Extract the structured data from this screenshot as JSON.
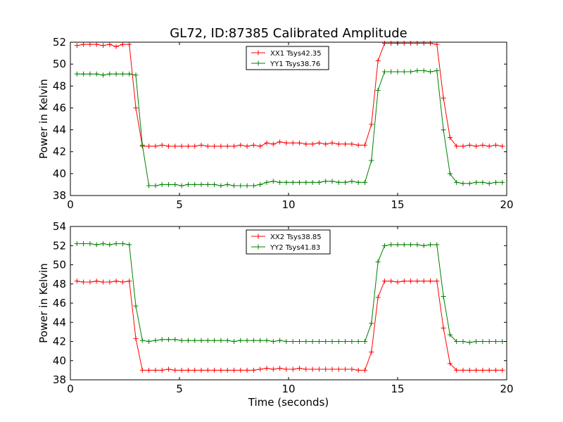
{
  "figure_title": "GL72, ID:87385 Calibrated Amplitude",
  "chart_data": [
    {
      "type": "line",
      "title": "",
      "xlabel": "",
      "ylabel": "Power in Kelvin",
      "xlim": [
        0,
        20
      ],
      "ylim": [
        38,
        52
      ],
      "xticks": [
        "0",
        "5",
        "10",
        "15",
        "20"
      ],
      "yticks": [
        "38",
        "40",
        "42",
        "44",
        "46",
        "48",
        "50",
        "52"
      ],
      "legend_position": "top-center",
      "x": [
        0.3,
        0.6,
        0.9,
        1.2,
        1.5,
        1.8,
        2.1,
        2.4,
        2.7,
        3.0,
        3.3,
        3.6,
        3.9,
        4.2,
        4.5,
        4.8,
        5.1,
        5.4,
        5.7,
        6.0,
        6.3,
        6.6,
        6.9,
        7.2,
        7.5,
        7.8,
        8.1,
        8.4,
        8.7,
        9.0,
        9.3,
        9.6,
        9.9,
        10.2,
        10.5,
        10.8,
        11.1,
        11.4,
        11.7,
        12.0,
        12.3,
        12.6,
        12.9,
        13.2,
        13.5,
        13.8,
        14.1,
        14.4,
        14.7,
        15.0,
        15.3,
        15.6,
        15.9,
        16.2,
        16.5,
        16.8,
        17.1,
        17.4,
        17.7,
        18.0,
        18.3,
        18.6,
        18.9,
        19.2,
        19.5,
        19.8
      ],
      "series": [
        {
          "name": "XX1 Tsys42.35",
          "color": "#ff0000",
          "values": [
            51.7,
            51.8,
            51.8,
            51.8,
            51.7,
            51.8,
            51.6,
            51.8,
            51.8,
            46.0,
            42.5,
            42.5,
            42.5,
            42.6,
            42.5,
            42.5,
            42.5,
            42.5,
            42.5,
            42.6,
            42.5,
            42.5,
            42.5,
            42.5,
            42.5,
            42.6,
            42.5,
            42.6,
            42.5,
            42.8,
            42.7,
            42.9,
            42.8,
            42.8,
            42.8,
            42.7,
            42.7,
            42.8,
            42.7,
            42.8,
            42.7,
            42.7,
            42.7,
            42.6,
            42.6,
            44.5,
            50.3,
            51.9,
            51.9,
            51.9,
            51.9,
            51.9,
            51.9,
            51.9,
            51.9,
            51.8,
            46.9,
            43.3,
            42.5,
            42.5,
            42.6,
            42.5,
            42.6,
            42.5,
            42.6,
            42.5
          ]
        },
        {
          "name": "YY1 Tsys38.76",
          "color": "#008000",
          "values": [
            49.1,
            49.1,
            49.1,
            49.1,
            49.0,
            49.1,
            49.1,
            49.1,
            49.1,
            49.0,
            42.6,
            38.9,
            38.9,
            39.0,
            39.0,
            39.0,
            38.9,
            39.0,
            39.0,
            39.0,
            39.0,
            39.0,
            38.9,
            39.0,
            38.9,
            38.9,
            38.9,
            38.9,
            39.0,
            39.2,
            39.3,
            39.2,
            39.2,
            39.2,
            39.2,
            39.2,
            39.2,
            39.2,
            39.3,
            39.3,
            39.2,
            39.2,
            39.3,
            39.2,
            39.2,
            41.2,
            47.6,
            49.3,
            49.3,
            49.3,
            49.3,
            49.3,
            49.4,
            49.4,
            49.3,
            49.4,
            44.0,
            40.0,
            39.2,
            39.1,
            39.1,
            39.2,
            39.2,
            39.1,
            39.2,
            39.2
          ]
        }
      ]
    },
    {
      "type": "line",
      "title": "",
      "xlabel": "Time (seconds)",
      "ylabel": "Power in Kelvin",
      "xlim": [
        0,
        20
      ],
      "ylim": [
        38,
        54
      ],
      "xticks": [
        "0",
        "5",
        "10",
        "15",
        "20"
      ],
      "yticks": [
        "38",
        "40",
        "42",
        "44",
        "46",
        "48",
        "50",
        "52",
        "54"
      ],
      "legend_position": "top-center",
      "x": [
        0.3,
        0.6,
        0.9,
        1.2,
        1.5,
        1.8,
        2.1,
        2.4,
        2.7,
        3.0,
        3.3,
        3.6,
        3.9,
        4.2,
        4.5,
        4.8,
        5.1,
        5.4,
        5.7,
        6.0,
        6.3,
        6.6,
        6.9,
        7.2,
        7.5,
        7.8,
        8.1,
        8.4,
        8.7,
        9.0,
        9.3,
        9.6,
        9.9,
        10.2,
        10.5,
        10.8,
        11.1,
        11.4,
        11.7,
        12.0,
        12.3,
        12.6,
        12.9,
        13.2,
        13.5,
        13.8,
        14.1,
        14.4,
        14.7,
        15.0,
        15.3,
        15.6,
        15.9,
        16.2,
        16.5,
        16.8,
        17.1,
        17.4,
        17.7,
        18.0,
        18.3,
        18.6,
        18.9,
        19.2,
        19.5,
        19.8
      ],
      "series": [
        {
          "name": "XX2 Tsys38.85",
          "color": "#ff0000",
          "values": [
            48.3,
            48.2,
            48.2,
            48.3,
            48.2,
            48.2,
            48.3,
            48.2,
            48.3,
            42.3,
            39.0,
            39.0,
            39.0,
            39.0,
            39.1,
            39.0,
            39.0,
            39.0,
            39.0,
            39.0,
            39.0,
            39.0,
            39.0,
            39.0,
            39.0,
            39.0,
            39.0,
            39.0,
            39.1,
            39.2,
            39.1,
            39.2,
            39.1,
            39.1,
            39.2,
            39.1,
            39.1,
            39.1,
            39.1,
            39.1,
            39.1,
            39.1,
            39.1,
            39.0,
            39.0,
            40.9,
            46.6,
            48.3,
            48.3,
            48.2,
            48.3,
            48.3,
            48.3,
            48.3,
            48.3,
            48.3,
            43.4,
            39.7,
            39.0,
            39.0,
            39.0,
            39.0,
            39.0,
            39.0,
            39.0,
            39.0
          ]
        },
        {
          "name": "YY2 Tsys41.83",
          "color": "#008000",
          "values": [
            52.2,
            52.2,
            52.2,
            52.1,
            52.2,
            52.1,
            52.2,
            52.2,
            52.1,
            45.7,
            42.1,
            42.0,
            42.1,
            42.2,
            42.2,
            42.2,
            42.1,
            42.1,
            42.1,
            42.1,
            42.1,
            42.1,
            42.1,
            42.1,
            42.0,
            42.1,
            42.1,
            42.1,
            42.1,
            42.1,
            42.0,
            42.1,
            42.0,
            42.0,
            42.0,
            42.0,
            42.0,
            42.0,
            42.0,
            42.0,
            42.0,
            42.0,
            42.0,
            42.0,
            42.0,
            43.9,
            50.3,
            52.0,
            52.1,
            52.1,
            52.1,
            52.1,
            52.1,
            52.0,
            52.1,
            52.1,
            46.7,
            42.7,
            42.0,
            42.0,
            41.9,
            42.0,
            42.0,
            42.0,
            42.0,
            42.0
          ]
        }
      ]
    }
  ]
}
